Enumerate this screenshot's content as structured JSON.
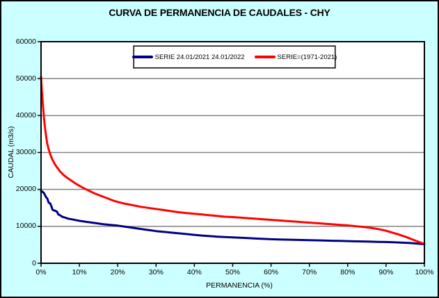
{
  "colors": {
    "background": "#CCFFFF",
    "plot_background": "#FFFFFF",
    "gridline": "#808080",
    "axis": "#000000",
    "series_blue": "#000080",
    "series_red": "#FF0000"
  },
  "chart_data": {
    "type": "line",
    "title": "CURVA DE PERMANENCIA DE CAUDALES - CHY",
    "xlabel": "PERMANENCIA (%)",
    "ylabel": "CAUDAL (m3/s)",
    "xlim": [
      0,
      100
    ],
    "ylim": [
      0,
      60000
    ],
    "grid": "horizontal-only",
    "legend_position": "top-center-inside",
    "x_ticks": [
      0,
      10,
      20,
      30,
      40,
      50,
      60,
      70,
      80,
      90,
      100
    ],
    "x_tick_labels": [
      "0%",
      "10%",
      "20%",
      "30%",
      "40%",
      "50%",
      "60%",
      "70%",
      "80%",
      "90%",
      "100%"
    ],
    "y_ticks": [
      0,
      10000,
      20000,
      30000,
      40000,
      50000,
      60000
    ],
    "y_tick_labels": [
      "0",
      "10000",
      "20000",
      "30000",
      "40000",
      "50000",
      "60000"
    ],
    "series": [
      {
        "name": "SERIE 24.01/2021 24.01/2022",
        "color": "#000080",
        "points": [
          [
            0,
            19600
          ],
          [
            0.3,
            19400
          ],
          [
            0.7,
            19100
          ],
          [
            1.0,
            18500
          ],
          [
            1.3,
            17900
          ],
          [
            1.6,
            17600
          ],
          [
            2.0,
            16400
          ],
          [
            2.4,
            16200
          ],
          [
            2.7,
            15400
          ],
          [
            3.0,
            14500
          ],
          [
            3.4,
            14300
          ],
          [
            3.8,
            14200
          ],
          [
            4.2,
            13900
          ],
          [
            4.5,
            13200
          ],
          [
            5.0,
            13000
          ],
          [
            5.5,
            12600
          ],
          [
            6.2,
            12400
          ],
          [
            7.0,
            12100
          ],
          [
            8.0,
            11900
          ],
          [
            9.0,
            11700
          ],
          [
            10,
            11500
          ],
          [
            12,
            11200
          ],
          [
            14,
            10900
          ],
          [
            16,
            10600
          ],
          [
            18,
            10400
          ],
          [
            20,
            10200
          ],
          [
            22,
            9900
          ],
          [
            24,
            9600
          ],
          [
            26,
            9300
          ],
          [
            28,
            9000
          ],
          [
            30,
            8700
          ],
          [
            32,
            8500
          ],
          [
            34,
            8300
          ],
          [
            36,
            8100
          ],
          [
            38,
            7900
          ],
          [
            40,
            7700
          ],
          [
            42,
            7500
          ],
          [
            44,
            7350
          ],
          [
            46,
            7200
          ],
          [
            48,
            7100
          ],
          [
            50,
            7000
          ],
          [
            52,
            6900
          ],
          [
            54,
            6800
          ],
          [
            56,
            6700
          ],
          [
            58,
            6600
          ],
          [
            60,
            6500
          ],
          [
            62,
            6450
          ],
          [
            64,
            6400
          ],
          [
            66,
            6350
          ],
          [
            68,
            6300
          ],
          [
            70,
            6250
          ],
          [
            72,
            6200
          ],
          [
            74,
            6150
          ],
          [
            76,
            6100
          ],
          [
            78,
            6050
          ],
          [
            80,
            6000
          ],
          [
            82,
            5950
          ],
          [
            84,
            5900
          ],
          [
            86,
            5850
          ],
          [
            88,
            5800
          ],
          [
            90,
            5750
          ],
          [
            92,
            5700
          ],
          [
            94,
            5600
          ],
          [
            96,
            5500
          ],
          [
            98,
            5350
          ],
          [
            100,
            5150
          ]
        ]
      },
      {
        "name": "SERIE=(1971-2021)",
        "color": "#FF0000",
        "points": [
          [
            0,
            50500
          ],
          [
            0.2,
            47000
          ],
          [
            0.4,
            44000
          ],
          [
            0.6,
            41500
          ],
          [
            0.8,
            39000
          ],
          [
            1.0,
            37000
          ],
          [
            1.3,
            34500
          ],
          [
            1.6,
            32500
          ],
          [
            2.0,
            30800
          ],
          [
            2.5,
            29200
          ],
          [
            3.0,
            28000
          ],
          [
            3.5,
            27000
          ],
          [
            4.0,
            26200
          ],
          [
            4.5,
            25500
          ],
          [
            5.0,
            24800
          ],
          [
            6.0,
            23800
          ],
          [
            7.0,
            23000
          ],
          [
            8.0,
            22300
          ],
          [
            9.0,
            21600
          ],
          [
            10,
            21000
          ],
          [
            11,
            20400
          ],
          [
            12,
            19900
          ],
          [
            13,
            19400
          ],
          [
            14,
            18900
          ],
          [
            15,
            18500
          ],
          [
            16,
            18100
          ],
          [
            17,
            17700
          ],
          [
            18,
            17300
          ],
          [
            19,
            16900
          ],
          [
            20,
            16600
          ],
          [
            22,
            16100
          ],
          [
            24,
            15700
          ],
          [
            26,
            15300
          ],
          [
            28,
            15000
          ],
          [
            30,
            14700
          ],
          [
            32,
            14400
          ],
          [
            34,
            14100
          ],
          [
            36,
            13800
          ],
          [
            38,
            13600
          ],
          [
            40,
            13400
          ],
          [
            42,
            13200
          ],
          [
            44,
            13000
          ],
          [
            46,
            12800
          ],
          [
            48,
            12600
          ],
          [
            50,
            12500
          ],
          [
            52,
            12350
          ],
          [
            54,
            12200
          ],
          [
            56,
            12050
          ],
          [
            58,
            11900
          ],
          [
            60,
            11750
          ],
          [
            62,
            11600
          ],
          [
            64,
            11450
          ],
          [
            66,
            11300
          ],
          [
            68,
            11150
          ],
          [
            70,
            11000
          ],
          [
            72,
            10850
          ],
          [
            74,
            10700
          ],
          [
            76,
            10550
          ],
          [
            78,
            10400
          ],
          [
            80,
            10250
          ],
          [
            82,
            10050
          ],
          [
            84,
            9850
          ],
          [
            86,
            9600
          ],
          [
            88,
            9250
          ],
          [
            90,
            8800
          ],
          [
            91,
            8500
          ],
          [
            92,
            8200
          ],
          [
            93,
            7900
          ],
          [
            94,
            7550
          ],
          [
            95,
            7200
          ],
          [
            96,
            6800
          ],
          [
            97,
            6400
          ],
          [
            98,
            6000
          ],
          [
            99,
            5600
          ],
          [
            100,
            5200
          ]
        ]
      }
    ]
  }
}
